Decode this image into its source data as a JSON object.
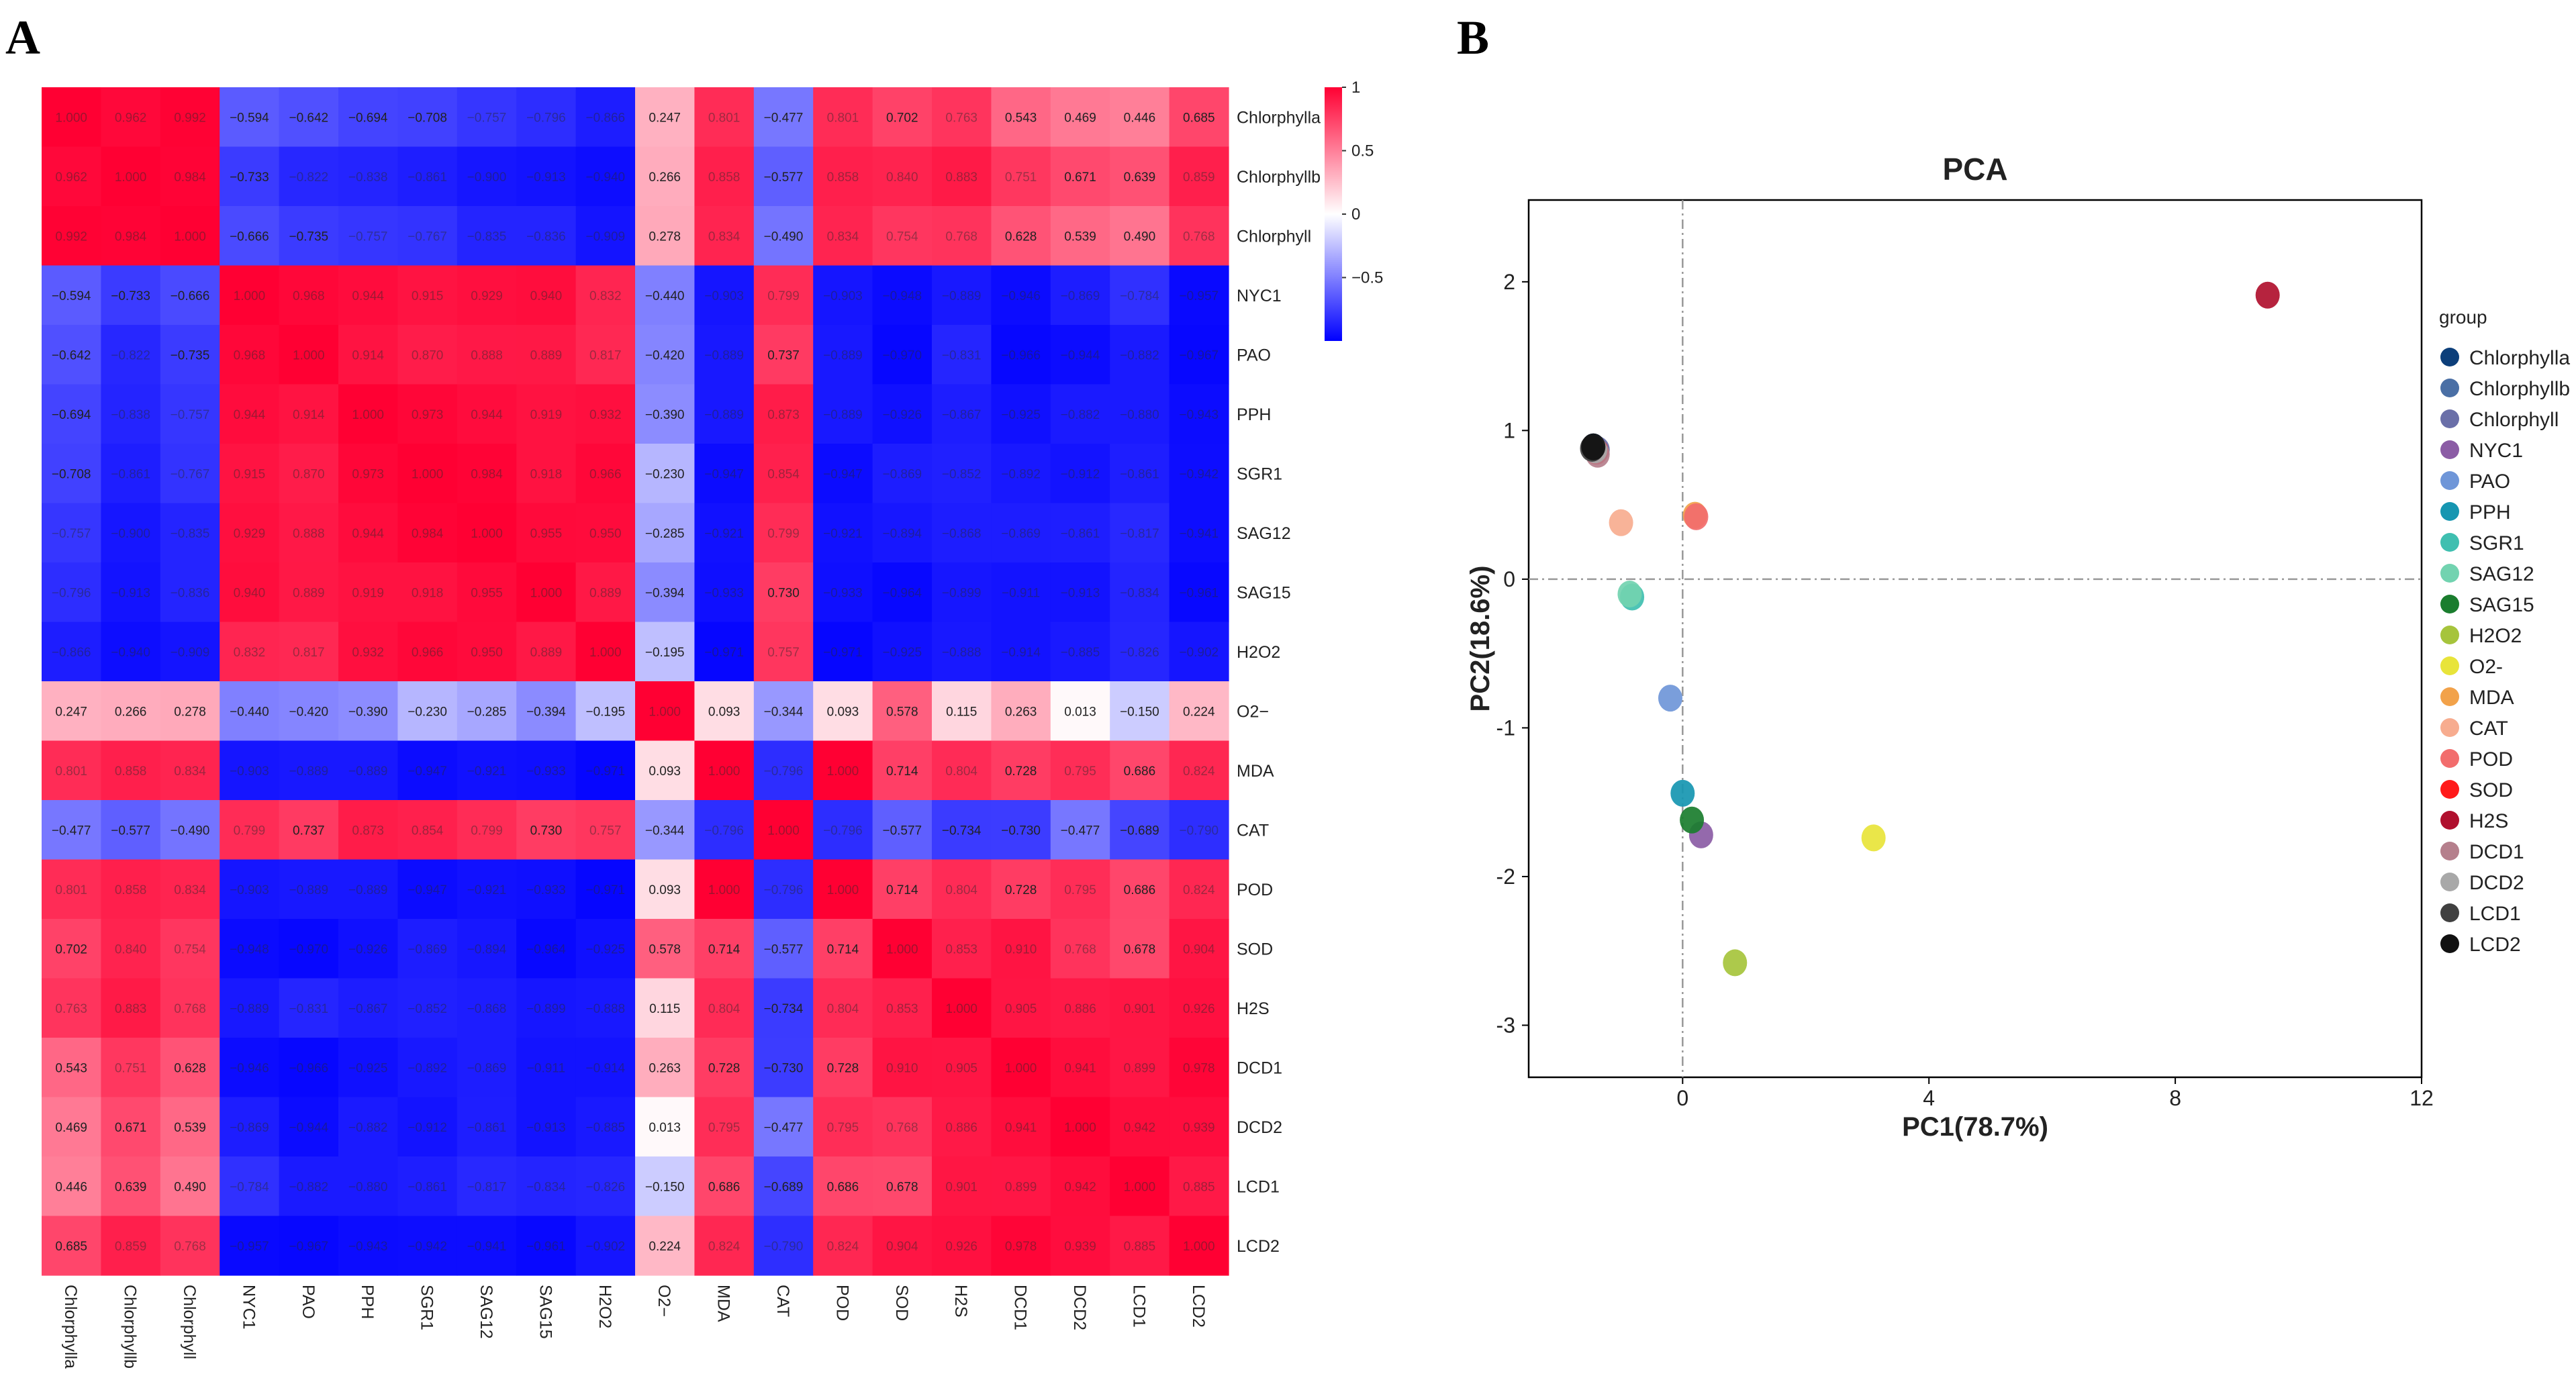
{
  "panels": {
    "a": "A",
    "b": "B"
  },
  "chart_data": [
    {
      "type": "heatmap",
      "title": "",
      "variables": [
        "Chlorphylla",
        "Chlorphyllb",
        "Chlorphyll",
        "NYC1",
        "PAO",
        "PPH",
        "SGR1",
        "SAG12",
        "SAG15",
        "H2O2",
        "O2−",
        "MDA",
        "CAT",
        "POD",
        "SOD",
        "H2S",
        "DCD1",
        "DCD2",
        "LCD1",
        "LCD2"
      ],
      "matrix": [
        [
          1.0,
          0.962,
          0.992,
          -0.594,
          -0.642,
          -0.694,
          -0.708,
          -0.757,
          -0.796,
          -0.866,
          0.247,
          0.801,
          -0.477,
          0.801,
          0.702,
          0.763,
          0.543,
          0.469,
          0.446,
          0.685
        ],
        [
          0.962,
          1.0,
          0.984,
          -0.733,
          -0.822,
          -0.838,
          -0.861,
          -0.9,
          -0.913,
          -0.94,
          0.266,
          0.858,
          -0.577,
          0.858,
          0.84,
          0.883,
          0.751,
          0.671,
          0.639,
          0.859
        ],
        [
          0.992,
          0.984,
          1.0,
          -0.666,
          -0.735,
          -0.757,
          -0.767,
          -0.835,
          -0.836,
          -0.909,
          0.278,
          0.834,
          -0.49,
          0.834,
          0.754,
          0.768,
          0.628,
          0.539,
          0.49,
          0.768
        ],
        [
          -0.594,
          -0.733,
          -0.666,
          1.0,
          0.968,
          0.944,
          0.915,
          0.929,
          0.94,
          0.832,
          -0.44,
          -0.903,
          0.799,
          -0.903,
          -0.948,
          -0.889,
          -0.946,
          -0.869,
          -0.784,
          -0.957
        ],
        [
          -0.642,
          -0.822,
          -0.735,
          0.968,
          1.0,
          0.914,
          0.87,
          0.888,
          0.889,
          0.817,
          -0.42,
          -0.889,
          0.737,
          -0.889,
          -0.97,
          -0.831,
          -0.966,
          -0.944,
          -0.882,
          -0.967
        ],
        [
          -0.694,
          -0.838,
          -0.757,
          0.944,
          0.914,
          1.0,
          0.973,
          0.944,
          0.919,
          0.932,
          -0.39,
          -0.889,
          0.873,
          -0.889,
          -0.926,
          -0.867,
          -0.925,
          -0.882,
          -0.88,
          -0.943
        ],
        [
          -0.708,
          -0.861,
          -0.767,
          0.915,
          0.87,
          0.973,
          1.0,
          0.984,
          0.918,
          0.966,
          -0.23,
          -0.947,
          0.854,
          -0.947,
          -0.869,
          -0.852,
          -0.892,
          -0.912,
          -0.861,
          -0.942
        ],
        [
          -0.757,
          -0.9,
          -0.835,
          0.929,
          0.888,
          0.944,
          0.984,
          1.0,
          0.955,
          0.95,
          -0.285,
          -0.921,
          0.799,
          -0.921,
          -0.894,
          -0.868,
          -0.869,
          -0.861,
          -0.817,
          -0.941
        ],
        [
          -0.796,
          -0.913,
          -0.836,
          0.94,
          0.889,
          0.919,
          0.918,
          0.955,
          1.0,
          0.889,
          -0.394,
          -0.933,
          0.73,
          -0.933,
          -0.964,
          -0.899,
          -0.911,
          -0.913,
          -0.834,
          -0.961
        ],
        [
          -0.866,
          -0.94,
          -0.909,
          0.832,
          0.817,
          0.932,
          0.966,
          0.95,
          0.889,
          1.0,
          -0.195,
          -0.971,
          0.757,
          -0.971,
          -0.925,
          -0.888,
          -0.914,
          -0.885,
          -0.826,
          -0.902
        ],
        [
          0.247,
          0.266,
          0.278,
          -0.44,
          -0.42,
          -0.39,
          -0.23,
          -0.285,
          -0.394,
          -0.195,
          1.0,
          0.093,
          -0.344,
          0.093,
          0.578,
          0.115,
          0.263,
          0.013,
          -0.15,
          0.224
        ],
        [
          0.801,
          0.858,
          0.834,
          -0.903,
          -0.889,
          -0.889,
          -0.947,
          -0.921,
          -0.933,
          -0.971,
          0.093,
          1.0,
          -0.796,
          1.0,
          0.714,
          0.804,
          0.728,
          0.795,
          0.686,
          0.824
        ],
        [
          -0.477,
          -0.577,
          -0.49,
          0.799,
          0.737,
          0.873,
          0.854,
          0.799,
          0.73,
          0.757,
          -0.344,
          -0.796,
          1.0,
          -0.796,
          -0.577,
          -0.734,
          -0.73,
          -0.477,
          -0.689,
          -0.79
        ],
        [
          0.801,
          0.858,
          0.834,
          -0.903,
          -0.889,
          -0.889,
          -0.947,
          -0.921,
          -0.933,
          -0.971,
          0.093,
          1.0,
          -0.796,
          1.0,
          0.714,
          0.804,
          0.728,
          0.795,
          0.686,
          0.824
        ],
        [
          0.702,
          0.84,
          0.754,
          -0.948,
          -0.97,
          -0.926,
          -0.869,
          -0.894,
          -0.964,
          -0.925,
          0.578,
          0.714,
          -0.577,
          0.714,
          1.0,
          0.853,
          0.91,
          0.768,
          0.678,
          0.904
        ],
        [
          0.763,
          0.883,
          0.768,
          -0.889,
          -0.831,
          -0.867,
          -0.852,
          -0.868,
          -0.899,
          -0.888,
          0.115,
          0.804,
          -0.734,
          0.804,
          0.853,
          1.0,
          0.905,
          0.886,
          0.901,
          0.926
        ],
        [
          0.543,
          0.751,
          0.628,
          -0.946,
          -0.966,
          -0.925,
          -0.892,
          -0.869,
          -0.911,
          -0.914,
          0.263,
          0.728,
          -0.73,
          0.728,
          0.91,
          0.905,
          1.0,
          0.941,
          0.899,
          0.978
        ],
        [
          0.469,
          0.671,
          0.539,
          -0.869,
          -0.944,
          -0.882,
          -0.912,
          -0.861,
          -0.913,
          -0.885,
          0.013,
          0.795,
          -0.477,
          0.795,
          0.768,
          0.886,
          0.941,
          1.0,
          0.942,
          0.939
        ],
        [
          0.446,
          0.639,
          0.49,
          -0.784,
          -0.882,
          -0.88,
          -0.861,
          -0.817,
          -0.834,
          -0.826,
          -0.15,
          0.686,
          -0.689,
          0.686,
          0.678,
          0.901,
          0.899,
          0.942,
          1.0,
          0.885
        ],
        [
          0.685,
          0.859,
          0.768,
          -0.957,
          -0.967,
          -0.943,
          -0.942,
          -0.941,
          -0.961,
          -0.902,
          0.224,
          0.824,
          -0.79,
          0.824,
          0.904,
          0.926,
          0.978,
          0.939,
          0.885,
          1.0
        ]
      ],
      "colorbar": {
        "ticks": [
          1,
          0.5,
          0,
          -0.5
        ],
        "tick_labels": [
          "1",
          "0.5",
          "0",
          "−0.5"
        ],
        "range": [
          -1,
          1
        ],
        "colors": {
          "low": "#0000ff",
          "mid": "#ffffff",
          "high": "#ff0033"
        }
      }
    },
    {
      "type": "scatter",
      "title": "PCA",
      "xlabel": "PC1(78.7%)",
      "ylabel": "PC2(18.6%)",
      "xlim": [
        -2.5,
        12
      ],
      "ylim": [
        -3.35,
        2.55
      ],
      "xticks": [
        0,
        4,
        8,
        12
      ],
      "yticks": [
        2,
        1,
        0,
        -1,
        -2,
        -3
      ],
      "reference_lines": {
        "x": 0,
        "y": 0
      },
      "legend_title": "group",
      "legend_position": "right",
      "points": [
        {
          "name": "Chlorphylla",
          "x": -1.45,
          "y": 0.89,
          "color": "#0d3f7a"
        },
        {
          "name": "Chlorphyllb",
          "x": -1.42,
          "y": 0.88,
          "color": "#4a6fa5"
        },
        {
          "name": "Chlorphyll",
          "x": -1.38,
          "y": 0.87,
          "color": "#6a6fa8"
        },
        {
          "name": "NYC1",
          "x": 0.3,
          "y": -1.72,
          "color": "#8b5ca5"
        },
        {
          "name": "PAO",
          "x": -0.2,
          "y": -0.8,
          "color": "#6f96d8"
        },
        {
          "name": "PPH",
          "x": 0.0,
          "y": -1.44,
          "color": "#1696b1"
        },
        {
          "name": "SGR1",
          "x": -0.82,
          "y": -0.12,
          "color": "#3fbfb0"
        },
        {
          "name": "SAG12",
          "x": -0.86,
          "y": -0.1,
          "color": "#72d3b0"
        },
        {
          "name": "SAG15",
          "x": 0.15,
          "y": -1.62,
          "color": "#1a7d2e"
        },
        {
          "name": "H2O2",
          "x": 0.85,
          "y": -2.58,
          "color": "#a6c43c"
        },
        {
          "name": "O2-",
          "x": 3.1,
          "y": -1.74,
          "color": "#e8e43a"
        },
        {
          "name": "MDA",
          "x": 0.2,
          "y": 0.43,
          "color": "#f2a24a"
        },
        {
          "name": "CAT",
          "x": -1.0,
          "y": 0.38,
          "color": "#f7ac8f"
        },
        {
          "name": "POD",
          "x": 0.22,
          "y": 0.42,
          "color": "#f26d6d"
        },
        {
          "name": "SOD",
          "x": -1.4,
          "y": 0.86,
          "color": "#ff1a1a"
        },
        {
          "name": "H2S",
          "x": 9.5,
          "y": 1.91,
          "color": "#b0102e"
        },
        {
          "name": "DCD1",
          "x": -1.38,
          "y": 0.84,
          "color": "#b57f8c"
        },
        {
          "name": "DCD2",
          "x": -1.42,
          "y": 0.87,
          "color": "#a8a8a8"
        },
        {
          "name": "LCD1",
          "x": -1.47,
          "y": 0.88,
          "color": "#404040"
        },
        {
          "name": "LCD2",
          "x": -1.45,
          "y": 0.89,
          "color": "#111111"
        }
      ]
    }
  ]
}
